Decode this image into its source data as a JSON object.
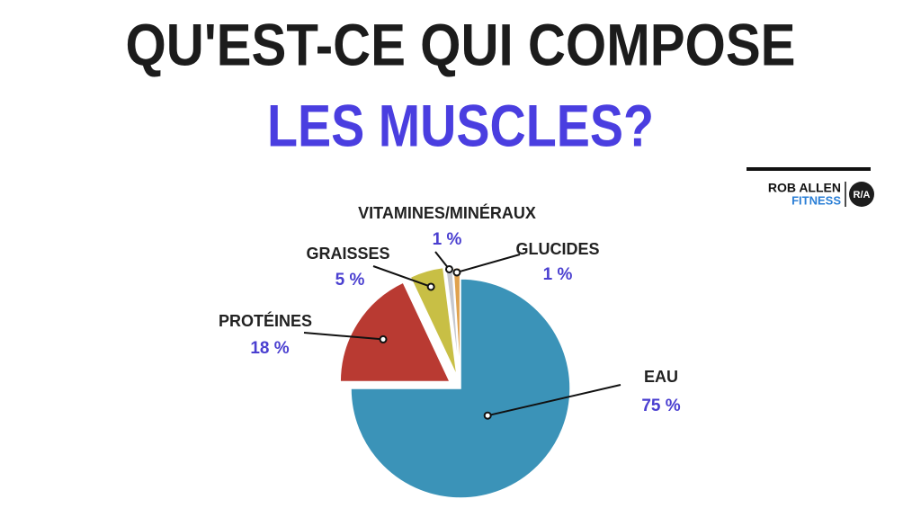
{
  "chart_data": {
    "type": "pie",
    "title": "QU'EST-CE QUI COMPOSE",
    "subtitle": "LES MUSCLES?",
    "categories": [
      "EAU",
      "PROTÉINES",
      "GRAISSES",
      "VITAMINES/MINÉRAUX",
      "GLUCIDES"
    ],
    "values": [
      75,
      18,
      5,
      1,
      1
    ],
    "value_labels": [
      "75 %",
      "18 %",
      "5 %",
      "1 %",
      "1 %"
    ],
    "colors": [
      "#3b93b8",
      "#b93a32",
      "#c8bf45",
      "#c6c8cf",
      "#e0a24e"
    ]
  },
  "brand": {
    "name": "ROB ALLEN",
    "tagline": "FITNESS",
    "logo": "R/A"
  }
}
